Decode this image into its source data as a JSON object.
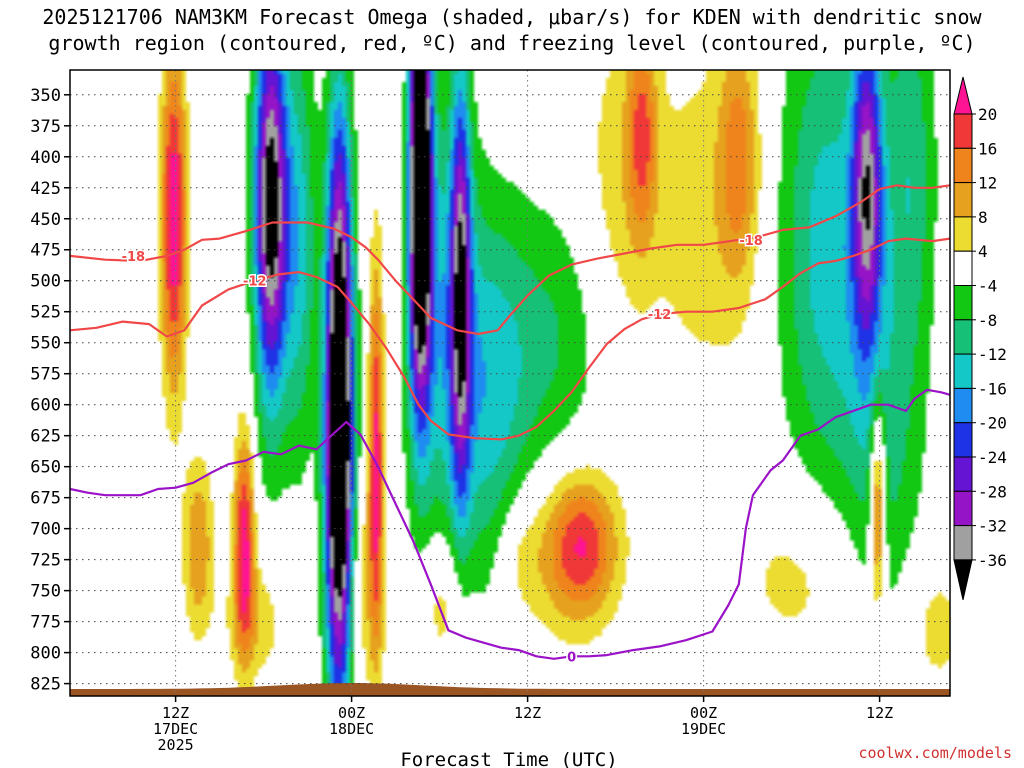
{
  "title": {
    "line1": "2025121706 NAM3KM Forecast Omega (shaded, μbar/s) for KDEN with dendritic snow",
    "line2": "growth region (contoured, red, ºC) and freezing level (contoured, purple, ºC)"
  },
  "credit": "coolwx.com/models",
  "chart_data": {
    "type": "heatmap",
    "title": "2025121706 NAM3KM Forecast Omega (shaded, μbar/s) for KDEN with dendritic snow growth region (contoured, red, ºC) and freezing level (contoured, purple, ºC)",
    "xlabel": "Forecast Time (UTC)",
    "ylabel": "",
    "xlim": [
      6,
      56
    ],
    "ylim": [
      835,
      330
    ],
    "x_ticks": [
      {
        "value": 12,
        "lines": [
          "12Z",
          "17DEC",
          "2025"
        ]
      },
      {
        "value": 22,
        "lines": [
          "00Z",
          "18DEC"
        ]
      },
      {
        "value": 32,
        "lines": [
          "12Z"
        ]
      },
      {
        "value": 42,
        "lines": [
          "00Z",
          "19DEC"
        ]
      },
      {
        "value": 52,
        "lines": [
          "12Z"
        ]
      }
    ],
    "y_ticks": [
      350,
      375,
      400,
      425,
      450,
      475,
      500,
      525,
      550,
      575,
      600,
      625,
      650,
      675,
      700,
      725,
      750,
      775,
      800,
      825
    ],
    "colorbar": {
      "labels": [
        "20",
        "16",
        "12",
        "8",
        "4",
        "-4",
        "-8",
        "-12",
        "-16",
        "-20",
        "-24",
        "-28",
        "-32",
        "-36"
      ],
      "levels": [
        {
          "from": 20,
          "to": 99,
          "color": "#ff1493"
        },
        {
          "from": 16,
          "to": 20,
          "color": "#f03838"
        },
        {
          "from": 12,
          "to": 16,
          "color": "#f0841c"
        },
        {
          "from": 8,
          "to": 12,
          "color": "#e6a21e"
        },
        {
          "from": 4,
          "to": 8,
          "color": "#ecdc32"
        },
        {
          "from": -4,
          "to": 4,
          "color": "#ffffff"
        },
        {
          "from": -8,
          "to": -4,
          "color": "#12c812"
        },
        {
          "from": -12,
          "to": -8,
          "color": "#16c076"
        },
        {
          "from": -16,
          "to": -12,
          "color": "#14c8c8"
        },
        {
          "from": -20,
          "to": -16,
          "color": "#1e8cf0"
        },
        {
          "from": -24,
          "to": -20,
          "color": "#1e32e6"
        },
        {
          "from": -28,
          "to": -24,
          "color": "#6414d2"
        },
        {
          "from": -32,
          "to": -28,
          "color": "#9614c8"
        },
        {
          "from": -36,
          "to": -32,
          "color": "#a0a0a0"
        },
        {
          "from": -99,
          "to": -36,
          "color": "#000000"
        }
      ]
    },
    "omega_features": [
      {
        "x": 11.9,
        "p": 450,
        "sx": 0.5,
        "sp": 95,
        "v": 24
      },
      {
        "x": 13.3,
        "p": 715,
        "sx": 0.6,
        "sp": 50,
        "v": 12
      },
      {
        "x": 15.9,
        "p": 710,
        "sx": 0.4,
        "sp": 60,
        "v": 22
      },
      {
        "x": 16.5,
        "p": 775,
        "sx": 1.2,
        "sp": 35,
        "v": 7
      },
      {
        "x": 17.4,
        "p": 440,
        "sx": 0.65,
        "sp": 110,
        "v": -40
      },
      {
        "x": 19.0,
        "p": 470,
        "sx": 0.7,
        "sp": 120,
        "v": -14
      },
      {
        "x": 21.3,
        "p": 640,
        "sx": 0.55,
        "sp": 140,
        "v": -56
      },
      {
        "x": 21.3,
        "p": 420,
        "sx": 0.5,
        "sp": 80,
        "v": -12
      },
      {
        "x": 22.4,
        "p": 745,
        "sx": 1.0,
        "sp": 60,
        "v": 7
      },
      {
        "x": 23.4,
        "p": 640,
        "sx": 0.3,
        "sp": 110,
        "v": 21
      },
      {
        "x": 24.6,
        "p": 430,
        "sx": 0.45,
        "sp": 90,
        "v": 6
      },
      {
        "x": 25.9,
        "p": 420,
        "sx": 0.45,
        "sp": 120,
        "v": -52
      },
      {
        "x": 27.0,
        "p": 530,
        "sx": 1.4,
        "sp": 130,
        "v": -12
      },
      {
        "x": 28.2,
        "p": 500,
        "sx": 0.4,
        "sp": 120,
        "v": -28
      },
      {
        "x": 27.2,
        "p": 760,
        "sx": 0.9,
        "sp": 40,
        "v": 8
      },
      {
        "x": 29.8,
        "p": 600,
        "sx": 1.6,
        "sp": 110,
        "v": -12
      },
      {
        "x": 31.5,
        "p": 720,
        "sx": 0.9,
        "sp": 35,
        "v": 5
      },
      {
        "x": 33.5,
        "p": 545,
        "sx": 2.6,
        "sp": 80,
        "v": -8
      },
      {
        "x": 35.1,
        "p": 712,
        "sx": 1.4,
        "sp": 40,
        "v": 17
      },
      {
        "x": 33.8,
        "p": 730,
        "sx": 2.2,
        "sp": 50,
        "v": 5
      },
      {
        "x": 37.0,
        "p": 440,
        "sx": 1.5,
        "sp": 110,
        "v": 6
      },
      {
        "x": 38.5,
        "p": 380,
        "sx": 0.6,
        "sp": 60,
        "v": 14
      },
      {
        "x": 42.0,
        "p": 450,
        "sx": 2.5,
        "sp": 110,
        "v": 6
      },
      {
        "x": 44.0,
        "p": 400,
        "sx": 0.8,
        "sp": 70,
        "v": 12
      },
      {
        "x": 47.5,
        "p": 740,
        "sx": 2.5,
        "sp": 50,
        "v": 6
      },
      {
        "x": 49.0,
        "p": 470,
        "sx": 2.0,
        "sp": 140,
        "v": -14
      },
      {
        "x": 51.3,
        "p": 420,
        "sx": 0.6,
        "sp": 90,
        "v": -28
      },
      {
        "x": 52.2,
        "p": 625,
        "sx": 1.6,
        "sp": 120,
        "v": -9
      },
      {
        "x": 51.9,
        "p": 680,
        "sx": 0.3,
        "sp": 60,
        "v": 20
      },
      {
        "x": 53.8,
        "p": 400,
        "sx": 1.0,
        "sp": 110,
        "v": -10
      },
      {
        "x": 55.2,
        "p": 780,
        "sx": 1.2,
        "sp": 40,
        "v": 6
      }
    ],
    "contours": [
      {
        "name": "dgz-upper",
        "label": "-18",
        "color": "#f04848",
        "label_points": [
          {
            "x": 9.6,
            "p": 480
          },
          {
            "x": 44.7,
            "p": 467
          }
        ],
        "points": [
          [
            6,
            480
          ],
          [
            8,
            483
          ],
          [
            10,
            484
          ],
          [
            11.5,
            480
          ],
          [
            12.5,
            475
          ],
          [
            13.5,
            467
          ],
          [
            14.5,
            466
          ],
          [
            16,
            460
          ],
          [
            17.5,
            453
          ],
          [
            19.5,
            453
          ],
          [
            21,
            458
          ],
          [
            22,
            465
          ],
          [
            22.8,
            473
          ],
          [
            23.5,
            483
          ],
          [
            24.5,
            500
          ],
          [
            25.5,
            515
          ],
          [
            26.5,
            530
          ],
          [
            28,
            540
          ],
          [
            29.2,
            543
          ],
          [
            30.3,
            540
          ],
          [
            31,
            528
          ],
          [
            32,
            512
          ],
          [
            33.2,
            496
          ],
          [
            34.5,
            487
          ],
          [
            36,
            482
          ],
          [
            37.5,
            478
          ],
          [
            39,
            474
          ],
          [
            40.5,
            471
          ],
          [
            42,
            471
          ],
          [
            43.5,
            468
          ],
          [
            45,
            465
          ],
          [
            46.5,
            459
          ],
          [
            48,
            457
          ],
          [
            49.5,
            448
          ],
          [
            51,
            436
          ],
          [
            52,
            426
          ],
          [
            53,
            423
          ],
          [
            54,
            425
          ],
          [
            55,
            425
          ],
          [
            56,
            423
          ]
        ]
      },
      {
        "name": "dgz-lower",
        "label": "-12",
        "color": "#f04848",
        "label_points": [
          {
            "x": 16.5,
            "p": 500
          },
          {
            "x": 39.5,
            "p": 527
          }
        ],
        "points": [
          [
            6,
            540
          ],
          [
            7.5,
            538
          ],
          [
            9,
            533
          ],
          [
            10.5,
            535
          ],
          [
            11.5,
            545
          ],
          [
            12.5,
            540
          ],
          [
            13.5,
            520
          ],
          [
            15,
            507
          ],
          [
            16.5,
            500
          ],
          [
            17.8,
            495
          ],
          [
            19,
            493
          ],
          [
            20,
            497
          ],
          [
            21.2,
            505
          ],
          [
            22,
            518
          ],
          [
            23,
            535
          ],
          [
            24,
            555
          ],
          [
            25,
            578
          ],
          [
            25.8,
            600
          ],
          [
            26.5,
            613
          ],
          [
            27.5,
            624
          ],
          [
            29,
            627
          ],
          [
            30.5,
            628
          ],
          [
            31.5,
            625
          ],
          [
            32.5,
            618
          ],
          [
            33.5,
            605
          ],
          [
            34.5,
            590
          ],
          [
            35.5,
            570
          ],
          [
            36.5,
            551
          ],
          [
            37.5,
            539
          ],
          [
            38.5,
            531
          ],
          [
            39.5,
            527
          ],
          [
            41,
            525
          ],
          [
            42.5,
            525
          ],
          [
            44,
            522
          ],
          [
            45.5,
            515
          ],
          [
            46.5,
            505
          ],
          [
            47.5,
            494
          ],
          [
            48.5,
            486
          ],
          [
            49.5,
            484
          ],
          [
            50.5,
            480
          ],
          [
            51.5,
            475
          ],
          [
            52.5,
            468
          ],
          [
            53.5,
            466
          ],
          [
            55,
            468
          ],
          [
            56,
            466
          ]
        ]
      },
      {
        "name": "freezing-level",
        "label": "0",
        "color": "#9b12c8",
        "label_points": [
          {
            "x": 34.5,
            "p": 803
          }
        ],
        "points": [
          [
            6,
            668
          ],
          [
            7,
            671
          ],
          [
            8,
            673
          ],
          [
            9,
            673
          ],
          [
            10,
            673
          ],
          [
            11,
            668
          ],
          [
            12,
            667
          ],
          [
            13,
            663
          ],
          [
            14,
            655
          ],
          [
            15,
            648
          ],
          [
            16,
            645
          ],
          [
            17,
            638
          ],
          [
            18,
            640
          ],
          [
            19,
            633
          ],
          [
            20,
            636
          ],
          [
            21,
            623
          ],
          [
            21.7,
            614
          ],
          [
            22.5,
            624
          ],
          [
            23.5,
            650
          ],
          [
            24.5,
            680
          ],
          [
            25.5,
            710
          ],
          [
            26.5,
            745
          ],
          [
            27.5,
            782
          ],
          [
            28.5,
            788
          ],
          [
            29.5,
            792
          ],
          [
            30.5,
            796
          ],
          [
            31.5,
            798
          ],
          [
            32.5,
            803
          ],
          [
            33.5,
            805
          ],
          [
            34.5,
            803
          ],
          [
            35.5,
            803
          ],
          [
            36.5,
            802
          ],
          [
            38,
            798
          ],
          [
            39.5,
            795
          ],
          [
            41,
            790
          ],
          [
            42.5,
            783
          ],
          [
            43.4,
            762
          ],
          [
            44,
            745
          ],
          [
            44.4,
            700
          ],
          [
            44.8,
            673
          ],
          [
            45.8,
            653
          ],
          [
            46.5,
            645
          ],
          [
            47.5,
            625
          ],
          [
            48.5,
            620
          ],
          [
            49.5,
            610
          ],
          [
            50.5,
            605
          ],
          [
            51.5,
            600
          ],
          [
            52.5,
            600
          ],
          [
            53.5,
            605
          ],
          [
            54,
            595
          ],
          [
            54.7,
            588
          ],
          [
            55.5,
            590
          ],
          [
            56,
            592
          ]
        ]
      }
    ]
  }
}
